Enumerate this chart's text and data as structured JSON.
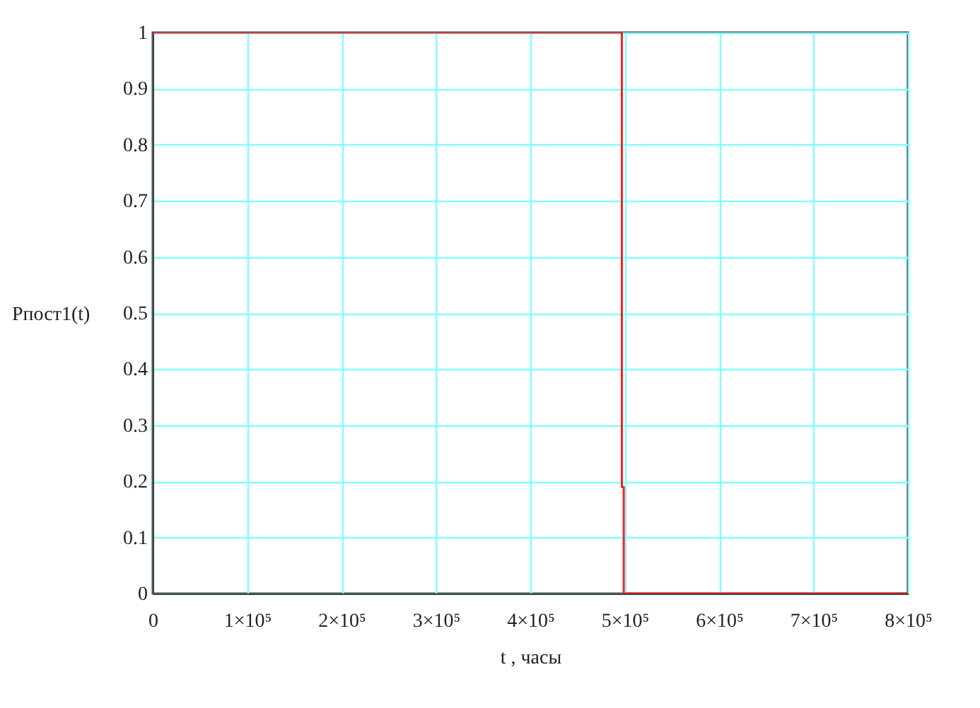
{
  "chart_data": {
    "type": "line",
    "xlabel": "t , часы",
    "ylabel": "Рпост1(t)",
    "x": [
      0,
      497000,
      497000,
      499000,
      499000,
      800000
    ],
    "series": [
      {
        "color": "#ff2020",
        "values": [
          1,
          1,
          0.19,
          0.19,
          0,
          0
        ]
      }
    ],
    "xlim": [
      0,
      800000
    ],
    "xticks": [
      0,
      {
        "value": 100000,
        "label": "1×10⁵"
      },
      {
        "value": 200000,
        "label": "2×10⁵"
      },
      {
        "value": 300000,
        "label": "3×10⁵"
      },
      {
        "value": 400000,
        "label": "4×10⁵"
      },
      {
        "value": 500000,
        "label": "5×10⁵"
      },
      {
        "value": 600000,
        "label": "6×10⁵"
      },
      {
        "value": 700000,
        "label": "7×10⁵"
      },
      {
        "value": 800000,
        "label": "8×10⁵"
      }
    ],
    "ylim": [
      0,
      1
    ],
    "yticks": [
      0,
      0.1,
      0.2,
      0.3,
      0.4,
      0.5,
      0.6,
      0.7,
      0.8,
      0.9,
      1
    ],
    "grid": true,
    "legend": false,
    "marker": "none",
    "line_style": "solid"
  }
}
